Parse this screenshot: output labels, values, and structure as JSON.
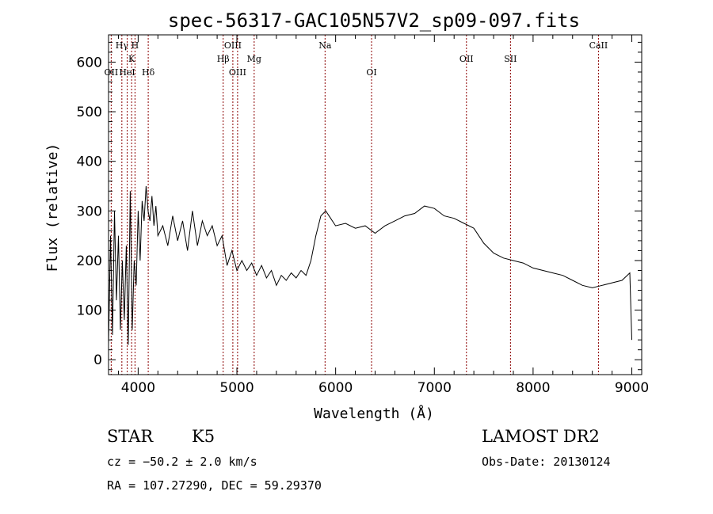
{
  "chart_data": {
    "type": "line",
    "title": "spec-56317-GAC105N57V2_sp09-097.fits",
    "xlabel": "Wavelength (Å)",
    "ylabel": "Flux (relative)",
    "xlim": [
      3700,
      9100
    ],
    "ylim": [
      -30,
      655
    ],
    "xticks": [
      4000,
      5000,
      6000,
      7000,
      8000,
      9000
    ],
    "xtick_labels": [
      "4000",
      "5000",
      "6000",
      "7000",
      "8000",
      "9000"
    ],
    "yticks": [
      0,
      100,
      200,
      300,
      400,
      500,
      600
    ],
    "ytick_labels": [
      "0",
      "100",
      "200",
      "300",
      "400",
      "500",
      "600"
    ],
    "grid": false,
    "line_color": "#000000",
    "marker_color": "#8b0000",
    "series": [
      {
        "x": [
          3700,
          3720,
          3740,
          3760,
          3780,
          3800,
          3820,
          3840,
          3860,
          3880,
          3900,
          3920,
          3940,
          3960,
          3980,
          4000,
          4020,
          4040,
          4060,
          4080,
          4100,
          4120,
          4140,
          4160,
          4180,
          4200,
          4250,
          4300,
          4350,
          4400,
          4450,
          4500,
          4550,
          4600,
          4650,
          4700,
          4750,
          4800,
          4850,
          4900,
          4950,
          5000,
          5050,
          5100,
          5150,
          5200,
          5250,
          5300,
          5350,
          5400,
          5450,
          5500,
          5550,
          5600,
          5650,
          5700,
          5750,
          5800,
          5850,
          5900,
          5950,
          6000,
          6100,
          6200,
          6300,
          6400,
          6500,
          6600,
          6700,
          6800,
          6900,
          7000,
          7100,
          7200,
          7300,
          7400,
          7500,
          7600,
          7700,
          7800,
          7900,
          8000,
          8100,
          8200,
          8300,
          8400,
          8500,
          8600,
          8700,
          8800,
          8900,
          8980,
          9000
        ],
        "y": [
          30,
          250,
          50,
          300,
          120,
          250,
          60,
          200,
          80,
          230,
          30,
          340,
          60,
          200,
          150,
          300,
          200,
          320,
          280,
          350,
          300,
          280,
          330,
          270,
          310,
          250,
          270,
          230,
          290,
          240,
          280,
          220,
          300,
          230,
          280,
          250,
          270,
          230,
          250,
          190,
          220,
          180,
          200,
          180,
          195,
          170,
          190,
          165,
          180,
          150,
          170,
          160,
          175,
          165,
          180,
          170,
          200,
          250,
          290,
          300,
          285,
          270,
          275,
          265,
          270,
          255,
          270,
          280,
          290,
          295,
          310,
          305,
          290,
          285,
          275,
          265,
          235,
          215,
          205,
          200,
          195,
          185,
          180,
          175,
          170,
          160,
          150,
          145,
          150,
          155,
          160,
          175,
          40
        ]
      }
    ],
    "line_markers": [
      {
        "label": "OII",
        "x": 3727,
        "tier": 3
      },
      {
        "label": "Hγ",
        "x": 3835,
        "tier": 1
      },
      {
        "label": "HeI",
        "x": 3889,
        "tier": 3
      },
      {
        "label": "K",
        "x": 3934,
        "tier": 2
      },
      {
        "label": "H",
        "x": 3968,
        "tier": 1
      },
      {
        "label": "Hδ",
        "x": 4102,
        "tier": 3
      },
      {
        "label": "Hβ",
        "x": 4861,
        "tier": 2
      },
      {
        "label": "OIII",
        "x": 4959,
        "tier": 1
      },
      {
        "label": "OIII",
        "x": 5007,
        "tier": 3
      },
      {
        "label": "Mg",
        "x": 5175,
        "tier": 2
      },
      {
        "label": "Na",
        "x": 5893,
        "tier": 1
      },
      {
        "label": "OI",
        "x": 6364,
        "tier": 3
      },
      {
        "label": "OII",
        "x": 7325,
        "tier": 2
      },
      {
        "label": "SII",
        "x": 7771,
        "tier": 2
      },
      {
        "label": "CaII",
        "x": 8662,
        "tier": 1
      }
    ]
  },
  "info": {
    "class_label": "STAR",
    "subclass": "K5",
    "survey": "LAMOST DR2",
    "redshift_text": "cz = −50.2 ± 2.0 km/s",
    "obs_date": "Obs-Date: 20130124",
    "coords": "RA = 107.27290, DEC =  59.29370"
  }
}
